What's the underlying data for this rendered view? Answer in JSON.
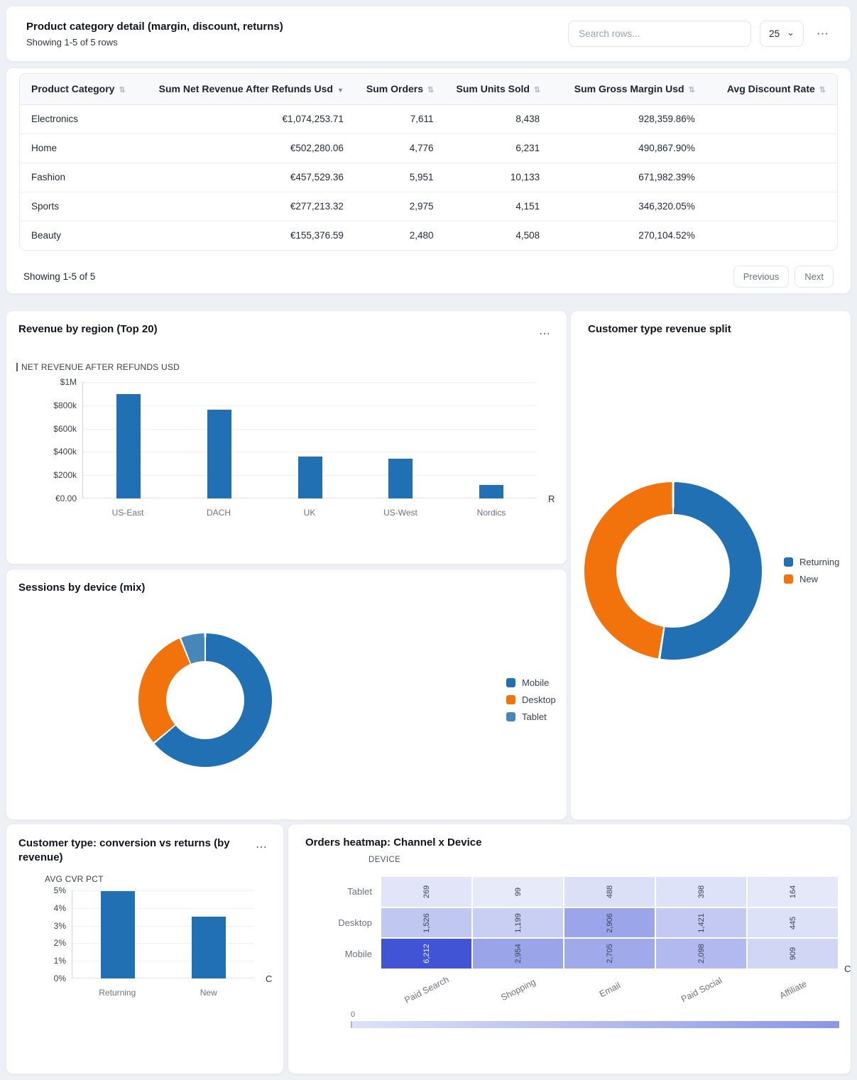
{
  "colors": {
    "page_bg": "#edf0f4",
    "card_bg": "#ffffff",
    "bar_blue": "#2170b3",
    "accent_orange": "#f2720c",
    "accent_steel": "#4487b8",
    "heat_min": "#e9ecfa",
    "heat_max": "#4254d6"
  },
  "icons": {
    "menu": "⋯",
    "sort_unsorted": "⇅",
    "sort_desc": "▼",
    "select_caret": "⌄"
  },
  "table_card": {
    "title": "Product category detail (margin, discount, returns)",
    "subtitle": "Showing 1-5 of 5 rows",
    "search_placeholder": "Search rows...",
    "page_size": "25",
    "columns": [
      {
        "label": "Product Category",
        "sort": "none",
        "align": "left",
        "width": "15%"
      },
      {
        "label": "Sum Net Revenue After Refunds Usd",
        "sort": "desc",
        "align": "right",
        "width": "26%"
      },
      {
        "label": "Sum Orders",
        "sort": "none",
        "align": "right",
        "width": "11%"
      },
      {
        "label": "Sum Units Sold",
        "sort": "none",
        "align": "right",
        "width": "13%"
      },
      {
        "label": "Sum Gross Margin Usd",
        "sort": "none",
        "align": "right",
        "width": "19%"
      },
      {
        "label": "Avg Discount Rate",
        "sort": "none",
        "align": "right",
        "width": "16%"
      }
    ],
    "rows": [
      [
        "Electronics",
        "€1,074,253.71",
        "7,611",
        "8,438",
        "928,359.86%",
        ""
      ],
      [
        "Home",
        "€502,280.06",
        "4,776",
        "6,231",
        "490,867.90%",
        ""
      ],
      [
        "Fashion",
        "€457,529.36",
        "5,951",
        "10,133",
        "671,982.39%",
        ""
      ],
      [
        "Sports",
        "€277,213.32",
        "2,975",
        "4,151",
        "346,320.05%",
        ""
      ],
      [
        "Beauty",
        "€155,376.59",
        "2,480",
        "4,508",
        "270,104.52%",
        ""
      ]
    ],
    "footer": {
      "showing": "Showing 1-5 of 5",
      "prev_label": "Previous",
      "next_label": "Next"
    }
  },
  "chart_data": [
    {
      "id": "revenue-by-region",
      "type": "bar",
      "title": "Revenue by region (Top 20)",
      "series_label": "NET REVENUE AFTER REFUNDS USD",
      "xlabel": "REGION",
      "x_title_clipped": "R",
      "y_ticks": [
        "$1M",
        "$800k",
        "$600k",
        "$400k",
        "$200k",
        "€0.00"
      ],
      "ylim": [
        0,
        1000000
      ],
      "categories": [
        "US-East",
        "DACH",
        "UK",
        "US-West",
        "Nordics"
      ],
      "values": [
        895000,
        765000,
        360000,
        340000,
        115000
      ],
      "bar_color": "#2170b3",
      "grid": true,
      "legend_position": "none"
    },
    {
      "id": "sessions-by-device",
      "type": "pie",
      "title": "Sessions by device (mix)",
      "legend_position": "right",
      "segments": [
        {
          "label": "Mobile",
          "pct": 63.9,
          "color": "#2170b3"
        },
        {
          "label": "Desktop",
          "pct": 30.0,
          "color": "#f2720c"
        },
        {
          "label": "Tablet",
          "pct": 6.1,
          "color": "#4487b8"
        }
      ]
    },
    {
      "id": "customer-type-revenue-split",
      "type": "pie",
      "title": "Customer type revenue split",
      "legend_position": "right",
      "segments": [
        {
          "label": "Returning",
          "pct": 52.5,
          "color": "#2170b3"
        },
        {
          "label": "New",
          "pct": 47.5,
          "color": "#f2720c"
        }
      ]
    },
    {
      "id": "customer-type-cvr",
      "type": "bar",
      "title": "Customer type: conversion vs returns (by revenue)",
      "series_label": "AVG CVR PCT",
      "xlabel": "CUSTOMER TYPE",
      "x_title_clipped": "C",
      "y_ticks": [
        "5%",
        "4%",
        "3%",
        "2%",
        "1%",
        "0%"
      ],
      "ylim": [
        0,
        5
      ],
      "categories": [
        "Returning",
        "New"
      ],
      "values": [
        4.97,
        3.5
      ],
      "bar_color": "#2170b3",
      "grid": true,
      "legend_position": "none"
    },
    {
      "id": "orders-heatmap",
      "type": "heatmap",
      "title": "Orders heatmap: Channel x Device",
      "y_axis_title": "DEVICE",
      "xlabel": "CHANNEL",
      "x_title_clipped": "C",
      "rows": [
        "Tablet",
        "Desktop",
        "Mobile"
      ],
      "cols": [
        "Paid Search",
        "Shopping",
        "Email",
        "Paid Social",
        "Affiliate"
      ],
      "values": [
        [
          269,
          99,
          488,
          398,
          164
        ],
        [
          1526,
          1199,
          2906,
          1421,
          445
        ],
        [
          6212,
          2954,
          2705,
          2098,
          909
        ]
      ],
      "scale_min_label": "0",
      "scale_min": 0,
      "scale_max": 6212,
      "color_min": "#e9ecfa",
      "color_max": "#4254d6"
    }
  ]
}
